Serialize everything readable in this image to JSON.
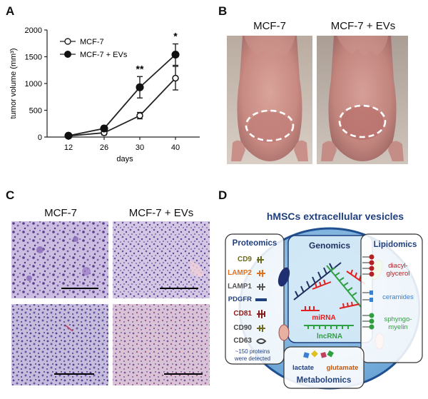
{
  "panels": {
    "a": {
      "letter": "A",
      "chart_data": {
        "type": "line",
        "x": [
          12,
          26,
          30,
          40
        ],
        "xticklabels": [
          "12",
          "26",
          "30",
          "40"
        ],
        "xlabel": "days",
        "ylabel": "tumor volume (mm³)",
        "ylim": [
          0,
          2000
        ],
        "yticks": [
          0,
          500,
          1000,
          1500,
          2000
        ],
        "yticklabels": [
          "0",
          "500",
          "1000",
          "1500",
          "2000"
        ],
        "legend_position": "top-left",
        "series": [
          {
            "name": "MCF-7",
            "marker": "open-circle",
            "values": [
              20,
              80,
              400,
              1100
            ],
            "errors": [
              10,
              40,
              60,
              220
            ]
          },
          {
            "name": "MCF-7 + EVs",
            "marker": "filled-circle",
            "values": [
              25,
              160,
              930,
              1540
            ],
            "errors": [
              10,
              50,
              200,
              200
            ]
          }
        ],
        "annotations": [
          {
            "x": 30,
            "text": "**"
          },
          {
            "x": 40,
            "text": "*"
          }
        ]
      }
    },
    "b": {
      "letter": "B",
      "labels": [
        "MCF-7",
        "MCF-7 + EVs"
      ]
    },
    "c": {
      "letter": "C",
      "labels": [
        "MCF-7",
        "MCF-7 + EVs"
      ]
    },
    "d": {
      "letter": "D",
      "title": "hMSCs extracellular vesicles",
      "proteomics": {
        "title": "Proteomics",
        "markers": [
          {
            "label": "CD9",
            "color": "#6b6b1f"
          },
          {
            "label": "LAMP2",
            "color": "#e07020"
          },
          {
            "label": "LAMP1",
            "color": "#555555"
          },
          {
            "label": "PDGFR",
            "color": "#1f3f7f"
          },
          {
            "label": "CD81",
            "color": "#8b1a1a"
          },
          {
            "label": "CD90",
            "color": "#444444"
          },
          {
            "label": "CD63",
            "color": "#444444"
          }
        ],
        "note_line1": "~150 proteins",
        "note_line2": "were detected"
      },
      "genomics": {
        "title": "Genomics",
        "mirna": "miRNA",
        "lncrna": "lncRNA"
      },
      "lipidomics": {
        "title": "Lipidomics",
        "items": [
          {
            "line1": "diacyl-",
            "line2": "glycerol",
            "color": "#b52025"
          },
          {
            "line1": "ceramides",
            "line2": "",
            "color": "#3a7fd0"
          },
          {
            "line1": "sphyngo-",
            "line2": "myelin",
            "color": "#2f9e3f"
          }
        ]
      },
      "metabolomics": {
        "title": "Metabolomics",
        "lactate": "lactate",
        "glutamate": "glutamate"
      },
      "colors": {
        "vesicle_fill": "#7fb4e0",
        "vesicle_stroke": "#1f4f8f",
        "title": "#1f3f7f",
        "mirna": "#e02020",
        "lncrna": "#2fa040",
        "genomics_dark": "#1f2f5f",
        "glutamate": "#c05a10"
      }
    }
  }
}
